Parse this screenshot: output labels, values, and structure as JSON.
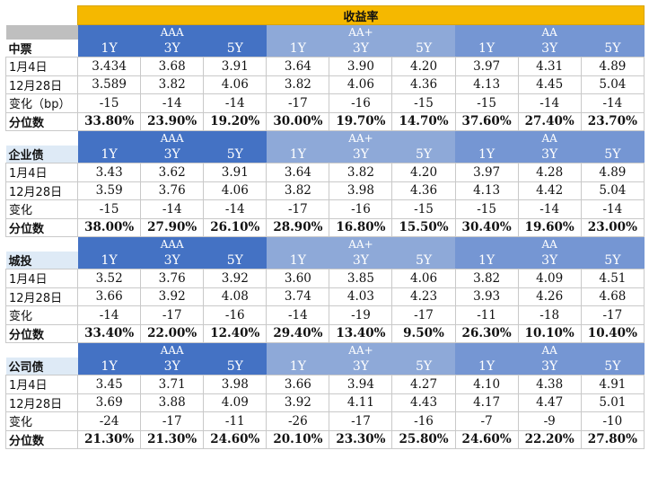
{
  "title": "收益率",
  "groups": [
    "AAA",
    "AA+",
    "AA"
  ],
  "tenors": [
    "1Y",
    "3Y",
    "5Y"
  ],
  "sections": [
    {
      "name": "中票",
      "rows": [
        {
          "label": "1月4日",
          "values": [
            "3.434",
            "3.68",
            "3.91",
            "3.64",
            "3.90",
            "4.20",
            "3.97",
            "4.31",
            "4.89"
          ]
        },
        {
          "label": "12月28日",
          "values": [
            "3.589",
            "3.82",
            "4.06",
            "3.82",
            "4.06",
            "4.36",
            "4.13",
            "4.45",
            "5.04"
          ]
        },
        {
          "label": "变化（bp）",
          "values": [
            "-15",
            "-14",
            "-14",
            "-17",
            "-16",
            "-15",
            "-15",
            "-14",
            "-14"
          ]
        },
        {
          "label": "分位数",
          "values": [
            "33.80%",
            "23.90%",
            "19.20%",
            "30.00%",
            "19.70%",
            "14.70%",
            "37.60%",
            "27.40%",
            "23.70%"
          ]
        }
      ]
    },
    {
      "name": "企业债",
      "rows": [
        {
          "label": "1月4日",
          "values": [
            "3.43",
            "3.62",
            "3.91",
            "3.64",
            "3.82",
            "4.20",
            "3.97",
            "4.28",
            "4.89"
          ]
        },
        {
          "label": "12月28日",
          "values": [
            "3.59",
            "3.76",
            "4.06",
            "3.82",
            "3.98",
            "4.36",
            "4.13",
            "4.42",
            "5.04"
          ]
        },
        {
          "label": "变化",
          "values": [
            "-15",
            "-14",
            "-14",
            "-17",
            "-16",
            "-15",
            "-15",
            "-14",
            "-14"
          ]
        },
        {
          "label": "分位数",
          "values": [
            "38.00%",
            "27.90%",
            "26.10%",
            "28.90%",
            "16.80%",
            "15.50%",
            "30.40%",
            "19.60%",
            "23.00%"
          ]
        }
      ]
    },
    {
      "name": "城投",
      "rows": [
        {
          "label": "1月4日",
          "values": [
            "3.52",
            "3.76",
            "3.92",
            "3.60",
            "3.85",
            "4.06",
            "3.82",
            "4.09",
            "4.51"
          ]
        },
        {
          "label": "12月28日",
          "values": [
            "3.66",
            "3.92",
            "4.08",
            "3.74",
            "4.03",
            "4.23",
            "3.93",
            "4.26",
            "4.68"
          ]
        },
        {
          "label": "变化",
          "values": [
            "-14",
            "-17",
            "-16",
            "-14",
            "-19",
            "-17",
            "-11",
            "-18",
            "-17"
          ]
        },
        {
          "label": "分位数",
          "values": [
            "33.40%",
            "22.00%",
            "12.40%",
            "29.40%",
            "13.40%",
            "9.50%",
            "26.30%",
            "10.10%",
            "10.40%"
          ]
        }
      ]
    },
    {
      "name": "公司债",
      "rows": [
        {
          "label": "1月4日",
          "values": [
            "3.45",
            "3.71",
            "3.98",
            "3.66",
            "3.94",
            "4.27",
            "4.10",
            "4.38",
            "4.91"
          ]
        },
        {
          "label": "12月28日",
          "values": [
            "3.69",
            "3.88",
            "4.09",
            "3.92",
            "4.11",
            "4.43",
            "4.17",
            "4.47",
            "5.01"
          ]
        },
        {
          "label": "变化",
          "values": [
            "-24",
            "-17",
            "-11",
            "-26",
            "-17",
            "-16",
            "-7",
            "-9",
            "-10"
          ]
        },
        {
          "label": "分位数",
          "values": [
            "21.30%",
            "21.30%",
            "24.60%",
            "20.10%",
            "23.30%",
            "25.80%",
            "24.60%",
            "22.20%",
            "27.80%"
          ]
        }
      ]
    }
  ]
}
